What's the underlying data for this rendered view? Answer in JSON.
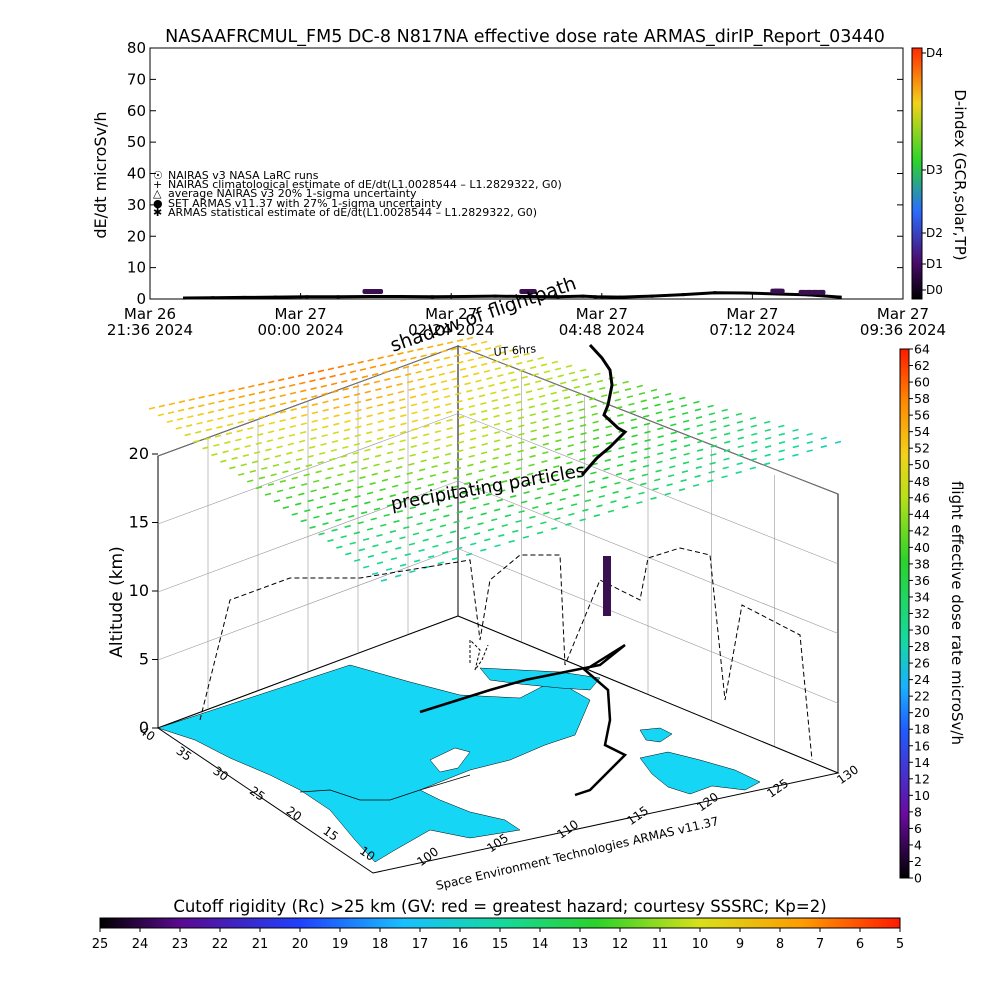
{
  "header": {
    "title": "NASAAFRCMUL_FM5 DC-8    N817NA effective dose rate ARMAS_dirIP_Report_03440"
  },
  "chart_data": [
    {
      "type": "line",
      "ylabel": "dE/dt microSv/h",
      "ylim": [
        0,
        80
      ],
      "y_ticks": [
        "0",
        "10",
        "20",
        "30",
        "40",
        "50",
        "60",
        "70",
        "80"
      ],
      "x_ticks": [
        {
          "top": "Mar 26",
          "bottom": "21:36 2024"
        },
        {
          "top": "Mar 27",
          "bottom": "00:00 2024"
        },
        {
          "top": "Mar 27",
          "bottom": "02:24 2024"
        },
        {
          "top": "Mar 27",
          "bottom": "04:48 2024"
        },
        {
          "top": "Mar 27",
          "bottom": "07:12 2024"
        },
        {
          "top": "Mar 27",
          "bottom": "09:36 2024"
        }
      ],
      "legend": [
        "NAIRAS v3 NASA LaRC runs",
        "NAIRAS climatological estimate of dE/dt(L1.0028544 – L1.2829322, G0)",
        "average NAIRAS v3 20% 1-sigma uncertainty",
        "SET ARMAS v11.37 with 27% 1-sigma uncertainty",
        "ARMAS statistical estimate of dE/dt(L1.0028544 – L1.2829322, G0)"
      ],
      "legend_markers": [
        "☉",
        "+",
        "△",
        "●",
        "✱"
      ],
      "legend_position": "left",
      "dindex_label": "D-index (GCR,solar,TP)",
      "dindex_ticks": [
        "D0",
        "D1",
        "D2",
        "D3",
        "D4"
      ],
      "series": [
        {
          "name": "NAIRAS climatological estimate of dE/dt(L1.0028544 – L1.2829322, G0)",
          "x_hours": [
            0.55,
            1.0,
            1.5,
            2.0,
            2.5,
            3.0,
            3.5,
            4.0,
            4.5,
            5.0,
            5.5,
            6.0,
            6.5,
            6.9,
            7.1,
            7.5,
            8.0,
            8.5,
            9.0,
            9.5,
            10.0,
            10.5,
            11.0
          ],
          "values": [
            0.3,
            0.4,
            0.5,
            0.6,
            0.7,
            0.7,
            0.8,
            0.8,
            0.7,
            0.8,
            0.9,
            0.8,
            0.7,
            0.9,
            0.7,
            0.6,
            0.9,
            1.4,
            2.0,
            1.9,
            1.6,
            1.3,
            0.6
          ]
        },
        {
          "name": "ARMAS statistical estimate of dE/dt(L1.0028544 – L1.2829322, G0)",
          "x_hours": [
            3.45,
            3.5,
            3.55,
            3.6,
            3.65,
            5.95,
            6.0,
            6.05,
            6.1,
            9.95,
            10.0,
            10.05,
            10.4,
            10.5,
            10.6,
            10.7
          ],
          "values": [
            2.4,
            2.4,
            2.4,
            2.4,
            2.4,
            2.4,
            2.4,
            2.4,
            2.4,
            2.5,
            2.5,
            2.5,
            2.1,
            2.1,
            2.1,
            2.1
          ]
        }
      ]
    },
    {
      "type": "scatter",
      "zlabel": "Altitude (km)",
      "z_ticks": [
        "0",
        "5",
        "10",
        "15",
        "20"
      ],
      "lat_ticks": [
        "10",
        "15",
        "20",
        "25",
        "30",
        "35",
        "40"
      ],
      "lon_ticks": [
        "100",
        "105",
        "110",
        "115",
        "120",
        "125",
        "130"
      ],
      "colorbar_label": "flight effective dose rate microSv/h",
      "colorbar_ticks": [
        "0",
        "2",
        "4",
        "6",
        "8",
        "10",
        "12",
        "14",
        "16",
        "18",
        "20",
        "22",
        "24",
        "26",
        "28",
        "30",
        "32",
        "34",
        "36",
        "38",
        "40",
        "42",
        "44",
        "46",
        "48",
        "50",
        "52",
        "54",
        "56",
        "58",
        "60",
        "62",
        "64"
      ],
      "annotations": {
        "shadow": "shadow of flightpath",
        "ut": "UT 6hrs",
        "precip": "precipitating particles",
        "credit": "Space Environment Technologies ARMAS v11.37"
      }
    },
    {
      "type": "heatmap",
      "title": "Cutoff rigidity (Rc) >25 km (GV: red = greatest hazard; courtesy SSSRC; Kp=2)",
      "colorbar_ticks": [
        "25",
        "24",
        "23",
        "22",
        "21",
        "20",
        "19",
        "18",
        "17",
        "16",
        "15",
        "14",
        "13",
        "12",
        "11",
        "10",
        "9",
        "8",
        "7",
        "6",
        "5"
      ]
    }
  ],
  "colors": {
    "land": "#16d6f5",
    "map_border": "#000000",
    "frame": "#000000",
    "armas_marker": "#3a1050"
  }
}
